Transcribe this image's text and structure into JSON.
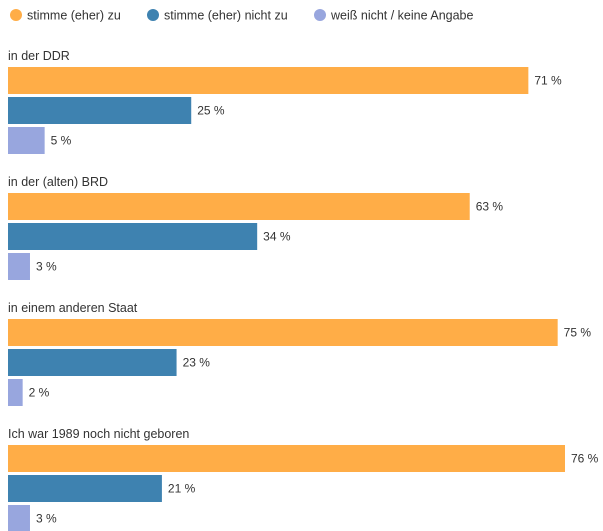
{
  "chart_data": {
    "type": "bar",
    "orientation": "horizontal",
    "legend_position": "top-left",
    "grid": false,
    "xlim": [
      0,
      76
    ],
    "unit_suffix": " %",
    "categories": [
      "in der DDR",
      "in der (alten) BRD",
      "in einem anderen Staat",
      "Ich war 1989 noch nicht geboren"
    ],
    "series": [
      {
        "name": "stimme (eher) zu",
        "color": "#ffad47",
        "values": [
          71,
          63,
          75,
          76
        ]
      },
      {
        "name": "stimme (eher) nicht zu",
        "color": "#3e82b0",
        "values": [
          25,
          34,
          23,
          21
        ]
      },
      {
        "name": "weiß nicht / keine Angabe",
        "color": "#98a6de",
        "values": [
          5,
          3,
          2,
          3
        ]
      }
    ]
  }
}
